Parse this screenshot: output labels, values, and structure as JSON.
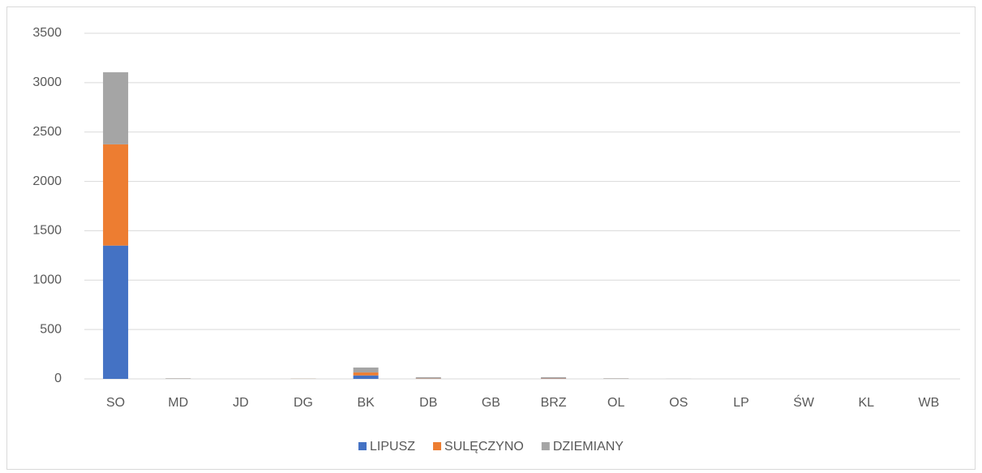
{
  "chart_data": {
    "type": "bar",
    "stacked": true,
    "categories": [
      "SO",
      "MD",
      "JD",
      "DG",
      "BK",
      "DB",
      "GB",
      "BRZ",
      "OL",
      "OS",
      "LP",
      "ŚW",
      "KL",
      "WB"
    ],
    "series": [
      {
        "name": "LIPUSZ",
        "color": "#4472c4",
        "values": [
          1350,
          0,
          0,
          0,
          35,
          2,
          0,
          3,
          1,
          0,
          0,
          0,
          0,
          0
        ]
      },
      {
        "name": "SULĘCZYNO",
        "color": "#ed7d31",
        "values": [
          1025,
          1,
          0,
          1,
          30,
          3,
          0,
          4,
          1,
          0,
          0,
          0,
          0,
          0
        ]
      },
      {
        "name": "DZIEMIANY",
        "color": "#a5a5a5",
        "values": [
          730,
          5,
          0,
          2,
          50,
          12,
          0,
          10,
          4,
          1,
          0,
          0,
          0,
          0
        ]
      }
    ],
    "ylim": [
      0,
      3500
    ],
    "yticks": [
      0,
      500,
      1000,
      1500,
      2000,
      2500,
      3000,
      3500
    ],
    "grid": true,
    "legend": "bottom"
  }
}
